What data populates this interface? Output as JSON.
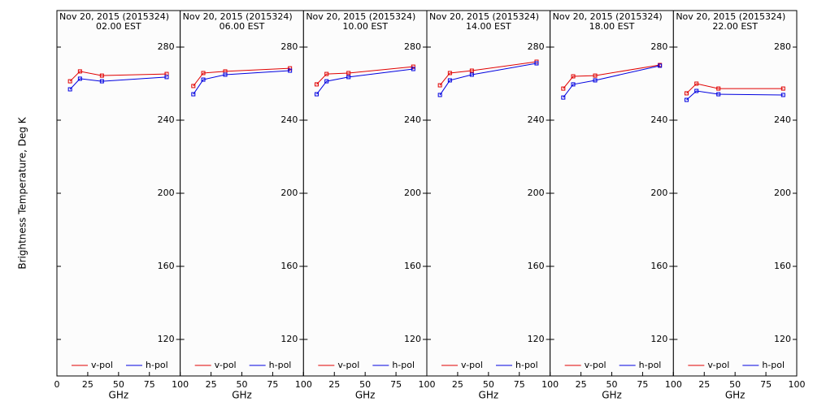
{
  "chart_data": [
    {
      "type": "line",
      "title": "Nov 20, 2015 (2015324)",
      "subtitle": "02.00 EST",
      "ylabel": "Brightness Temperature, Deg K",
      "xlabel": "GHz",
      "x": [
        10.65,
        18.7,
        36.5,
        89.0
      ],
      "series": [
        {
          "name": "v-pol",
          "color": "#e00000",
          "values": [
            261.3,
            266.7,
            264.4,
            265.3
          ]
        },
        {
          "name": "h-pol",
          "color": "#0000e0",
          "values": [
            256.9,
            262.7,
            261.3,
            263.6
          ]
        }
      ],
      "xlim": [
        0,
        100
      ],
      "ylim": [
        100,
        300
      ],
      "xticks": [
        0,
        25,
        50,
        75,
        100
      ],
      "yticks": [
        120,
        160,
        200,
        240,
        280
      ],
      "legend": "lower center"
    },
    {
      "type": "line",
      "title": "Nov 20, 2015 (2015324)",
      "subtitle": "06.00 EST",
      "xlabel": "GHz",
      "x": [
        10.65,
        18.7,
        36.5,
        89.0
      ],
      "series": [
        {
          "name": "v-pol",
          "color": "#e00000",
          "values": [
            258.7,
            265.8,
            266.7,
            268.4
          ]
        },
        {
          "name": "h-pol",
          "color": "#0000e0",
          "values": [
            254.2,
            262.2,
            264.9,
            267.1
          ]
        }
      ],
      "xlim": [
        0,
        100
      ],
      "ylim": [
        100,
        300
      ],
      "xticks": [
        0,
        25,
        50,
        75,
        100
      ],
      "yticks": [
        120,
        160,
        200,
        240,
        280
      ],
      "legend": "lower center"
    },
    {
      "type": "line",
      "title": "Nov 20, 2015 (2015324)",
      "subtitle": "10.00 EST",
      "xlabel": "GHz",
      "x": [
        10.65,
        18.7,
        36.5,
        89.0
      ],
      "series": [
        {
          "name": "v-pol",
          "color": "#e00000",
          "values": [
            259.6,
            265.3,
            265.8,
            269.3
          ]
        },
        {
          "name": "h-pol",
          "color": "#0000e0",
          "values": [
            254.2,
            261.3,
            263.6,
            268.0
          ]
        }
      ],
      "xlim": [
        0,
        100
      ],
      "ylim": [
        100,
        300
      ],
      "xticks": [
        0,
        25,
        50,
        75,
        100
      ],
      "yticks": [
        120,
        160,
        200,
        240,
        280
      ],
      "legend": "lower center"
    },
    {
      "type": "line",
      "title": "Nov 20, 2015 (2015324)",
      "subtitle": "14.00 EST",
      "xlabel": "GHz",
      "x": [
        10.65,
        18.7,
        36.5,
        89.0
      ],
      "series": [
        {
          "name": "v-pol",
          "color": "#e00000",
          "values": [
            259.1,
            265.8,
            267.1,
            272.0
          ]
        },
        {
          "name": "h-pol",
          "color": "#0000e0",
          "values": [
            253.8,
            261.8,
            264.9,
            271.1
          ]
        }
      ],
      "xlim": [
        0,
        100
      ],
      "ylim": [
        100,
        300
      ],
      "xticks": [
        0,
        25,
        50,
        75,
        100
      ],
      "yticks": [
        120,
        160,
        200,
        240,
        280
      ],
      "legend": "lower center"
    },
    {
      "type": "line",
      "title": "Nov 20, 2015 (2015324)",
      "subtitle": "18.00 EST",
      "xlabel": "GHz",
      "x": [
        10.65,
        18.7,
        36.5,
        89.0
      ],
      "series": [
        {
          "name": "v-pol",
          "color": "#e00000",
          "values": [
            257.3,
            264.0,
            264.4,
            270.2
          ]
        },
        {
          "name": "h-pol",
          "color": "#0000e0",
          "values": [
            252.4,
            259.6,
            261.8,
            269.8
          ]
        }
      ],
      "xlim": [
        0,
        100
      ],
      "ylim": [
        100,
        300
      ],
      "xticks": [
        0,
        25,
        50,
        75,
        100
      ],
      "yticks": [
        120,
        160,
        200,
        240,
        280
      ],
      "legend": "lower center"
    },
    {
      "type": "line",
      "title": "Nov 20, 2015 (2015324)",
      "subtitle": "22.00 EST",
      "xlabel": "GHz",
      "x": [
        10.65,
        18.7,
        36.5,
        89.0
      ],
      "series": [
        {
          "name": "v-pol",
          "color": "#e00000",
          "values": [
            254.7,
            260.0,
            257.3,
            257.3
          ]
        },
        {
          "name": "h-pol",
          "color": "#0000e0",
          "values": [
            251.1,
            256.0,
            254.2,
            253.8
          ]
        }
      ],
      "xlim": [
        0,
        100
      ],
      "ylim": [
        100,
        300
      ],
      "xticks": [
        0,
        25,
        50,
        75,
        100
      ],
      "yticks": [
        120,
        160,
        200,
        240,
        280
      ],
      "legend": "lower center"
    }
  ]
}
